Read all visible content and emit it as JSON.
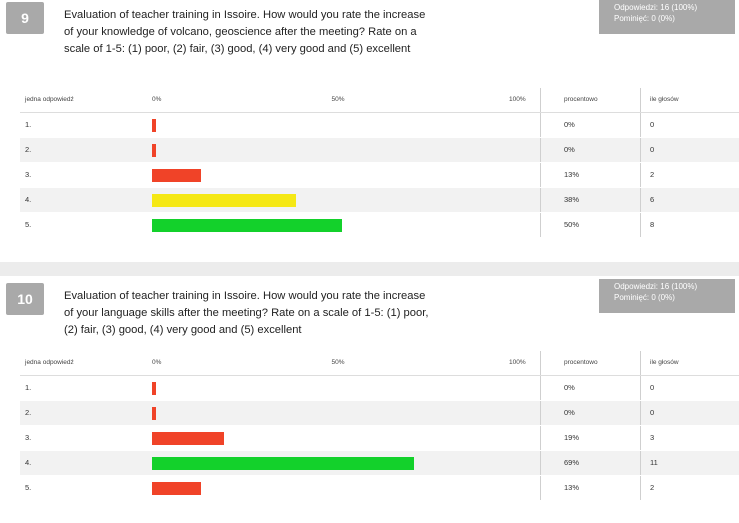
{
  "questions": [
    {
      "number": "9",
      "text": "Evaluation of teacher training in Issoire. How would you rate the increase of your knowledge of volcano, geoscience after the meeting? Rate on a scale of 1-5: (1) poor, (2) fair, (3) good, (4) very good and (5) excellent",
      "stats": {
        "answers": "Odpowiedzi: 16 (100%)",
        "skipped": "Pominięć: 0 (0%)"
      },
      "columns": {
        "answer": "jedna odpowiedź",
        "tick0": "0%",
        "tick50": "50%",
        "tick100": "100%",
        "percent": "procentowo",
        "count": "ile głosów"
      }
    },
    {
      "number": "10",
      "text": "Evaluation of teacher training in Issoire. How would you rate the increase of your language skills after the meeting? Rate on a scale of 1-5: (1) poor, (2) fair, (3) good, (4) very good and (5) excellent",
      "stats": {
        "answers": "Odpowiedzi: 16 (100%)",
        "skipped": "Pominięć: 0 (0%)"
      },
      "columns": {
        "answer": "jedna odpowiedź",
        "tick0": "0%",
        "tick50": "50%",
        "tick100": "100%",
        "percent": "procentowo",
        "count": "ile głosów"
      }
    }
  ],
  "chart_data": [
    {
      "type": "bar",
      "orientation": "horizontal",
      "categories": [
        "1.",
        "2.",
        "3.",
        "4.",
        "5."
      ],
      "values": [
        0,
        0,
        13,
        38,
        50
      ],
      "percent_labels": [
        "0%",
        "0%",
        "13%",
        "38%",
        "50%"
      ],
      "counts": [
        "0",
        "0",
        "2",
        "6",
        "8"
      ],
      "colors": [
        "#f04328",
        "#f04328",
        "#f04328",
        "#f5e815",
        "#13d12b"
      ],
      "xlim": [
        0,
        100
      ]
    },
    {
      "type": "bar",
      "orientation": "horizontal",
      "categories": [
        "1.",
        "2.",
        "3.",
        "4.",
        "5."
      ],
      "values": [
        0,
        0,
        19,
        69,
        13
      ],
      "percent_labels": [
        "0%",
        "0%",
        "19%",
        "69%",
        "13%"
      ],
      "counts": [
        "0",
        "0",
        "3",
        "11",
        "2"
      ],
      "colors": [
        "#f04328",
        "#f04328",
        "#f04328",
        "#13d12b",
        "#f04328"
      ],
      "xlim": [
        0,
        100
      ]
    }
  ]
}
